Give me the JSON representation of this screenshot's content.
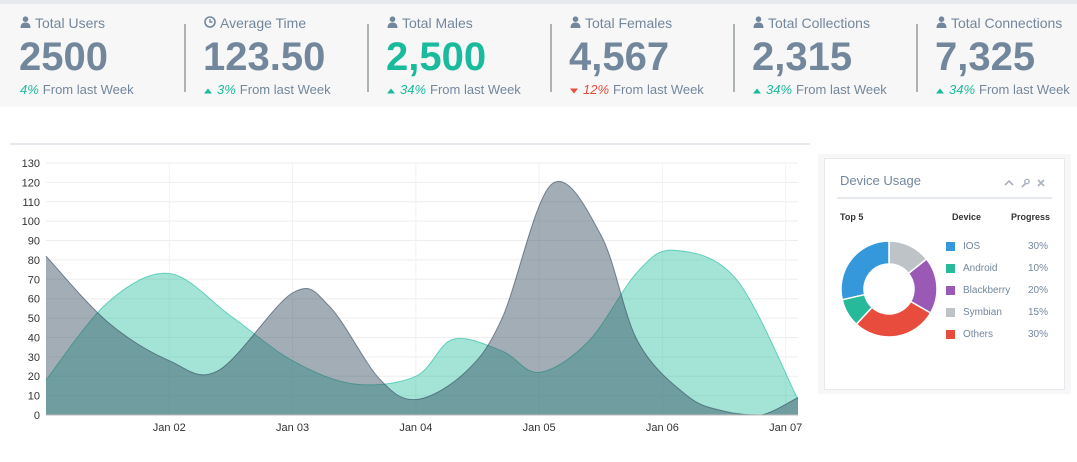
{
  "tiles": [
    {
      "icon": "user-icon",
      "title": "Total Users",
      "count": "2500",
      "count_green": false,
      "trend": "none",
      "pct": "4%",
      "caption": "From last Week"
    },
    {
      "icon": "clock-icon",
      "title": "Average Time",
      "count": "123.50",
      "count_green": false,
      "trend": "up",
      "pct": "3%",
      "caption": "From last Week"
    },
    {
      "icon": "user-icon",
      "title": "Total Males",
      "count": "2,500",
      "count_green": true,
      "trend": "up",
      "pct": "34%",
      "caption": "From last Week"
    },
    {
      "icon": "user-icon",
      "title": "Total Females",
      "count": "4,567",
      "count_green": false,
      "trend": "down",
      "pct": "12%",
      "caption": "From last Week"
    },
    {
      "icon": "user-icon",
      "title": "Total Collections",
      "count": "2,315",
      "count_green": false,
      "trend": "up",
      "pct": "34%",
      "caption": "From last Week"
    },
    {
      "icon": "user-icon",
      "title": "Total Connections",
      "count": "7,325",
      "count_green": false,
      "trend": "up",
      "pct": "34%",
      "caption": "From last Week"
    }
  ],
  "chart_data": {
    "type": "area",
    "yticks": [
      "0",
      "10",
      "20",
      "30",
      "40",
      "50",
      "60",
      "70",
      "80",
      "90",
      "100",
      "110",
      "120",
      "130"
    ],
    "ylim": [
      0,
      130
    ],
    "xticks": [
      "Jan 02",
      "Jan 03",
      "Jan 04",
      "Jan 05",
      "Jan 06",
      "Jan 07"
    ],
    "xlim": [
      1.0,
      7.1
    ],
    "grid": true,
    "series": [
      {
        "color": "#1ABB9C",
        "opacity": 0.4,
        "points": [
          [
            1.0,
            18
          ],
          [
            1.5,
            58
          ],
          [
            2.0,
            73
          ],
          [
            2.5,
            51
          ],
          [
            3.0,
            28
          ],
          [
            3.5,
            16
          ],
          [
            4.0,
            20
          ],
          [
            4.3,
            39
          ],
          [
            4.7,
            33
          ],
          [
            5.0,
            22
          ],
          [
            5.4,
            38
          ],
          [
            5.8,
            74
          ],
          [
            6.1,
            85
          ],
          [
            6.6,
            70
          ],
          [
            7.1,
            8
          ]
        ]
      },
      {
        "color": "#34495E",
        "opacity": 0.45,
        "points": [
          [
            1.0,
            82
          ],
          [
            1.5,
            48
          ],
          [
            2.0,
            28
          ],
          [
            2.4,
            23
          ],
          [
            3.0,
            63
          ],
          [
            3.3,
            56
          ],
          [
            3.7,
            19
          ],
          [
            4.0,
            8
          ],
          [
            4.4,
            22
          ],
          [
            4.7,
            50
          ],
          [
            5.1,
            119
          ],
          [
            5.5,
            93
          ],
          [
            5.8,
            38
          ],
          [
            6.2,
            10
          ],
          [
            6.5,
            2
          ],
          [
            6.8,
            0
          ],
          [
            7.1,
            9
          ]
        ]
      }
    ]
  },
  "device_usage": {
    "title": "Device Usage",
    "col_top": "Top 5",
    "col_device": "Device",
    "col_progress": "Progress",
    "items": [
      {
        "name": "IOS",
        "pct": "30%",
        "value": 30,
        "color": "#3498DB"
      },
      {
        "name": "Android",
        "pct": "10%",
        "value": 10,
        "color": "#26B99A"
      },
      {
        "name": "Blackberry",
        "pct": "20%",
        "value": 20,
        "color": "#9B59B6"
      },
      {
        "name": "Symbian",
        "pct": "15%",
        "value": 15,
        "color": "#BDC3C7"
      },
      {
        "name": "Others",
        "pct": "30%",
        "value": 30,
        "color": "#E74C3C"
      }
    ]
  }
}
